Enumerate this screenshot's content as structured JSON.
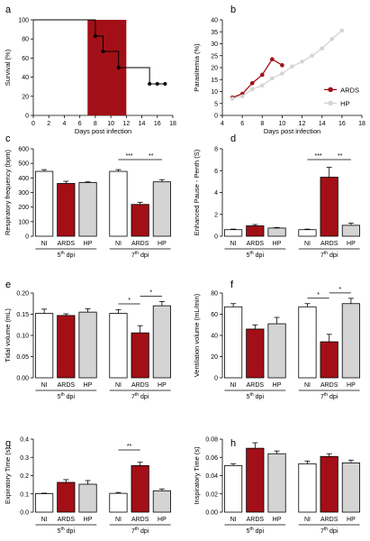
{
  "chart_data": [
    {
      "panel": "a",
      "type": "line",
      "xlabel": "Days post infection",
      "ylabel": "Survival (%)",
      "xlim": [
        0,
        18
      ],
      "ylim": [
        0,
        100
      ],
      "xticks": [
        "0",
        "2",
        "4",
        "6",
        "8",
        "10",
        "12",
        "14",
        "16",
        "18"
      ],
      "yticks": [
        "0",
        "20",
        "40",
        "60",
        "80",
        "100"
      ],
      "shaded_region": {
        "x": [
          7,
          12
        ],
        "color": "#a30f16"
      },
      "x": [
        0,
        7,
        7,
        8,
        8,
        9,
        9,
        11,
        11,
        13,
        13,
        15,
        15,
        16,
        17
      ],
      "y": [
        100,
        100,
        100,
        100,
        83,
        83,
        67,
        67,
        50,
        50,
        50,
        50,
        33,
        33,
        33
      ],
      "points": [
        {
          "x": 8,
          "y": 83
        },
        {
          "x": 9,
          "y": 67
        },
        {
          "x": 11,
          "y": 50
        },
        {
          "x": 15,
          "y": 33
        },
        {
          "x": 16,
          "y": 33
        },
        {
          "x": 17,
          "y": 33
        }
      ]
    },
    {
      "panel": "b",
      "type": "line",
      "xlabel": "Days post infection",
      "ylabel": "Parasitemia (%)",
      "xlim": [
        4,
        18
      ],
      "ylim": [
        0,
        40
      ],
      "xticks": [
        "4",
        "6",
        "8",
        "10",
        "12",
        "14",
        "16",
        "18"
      ],
      "yticks": [
        "0",
        "5",
        "10",
        "15",
        "20",
        "25",
        "30",
        "35",
        "40"
      ],
      "legend": "right",
      "series": [
        {
          "name": "ARDS",
          "color": "#a30f16",
          "x": [
            5,
            6,
            7,
            8,
            9,
            10
          ],
          "y": [
            7.5,
            9,
            13.5,
            17,
            23.5,
            21
          ]
        },
        {
          "name": "HP",
          "color": "#d4d4d4",
          "x": [
            5,
            6,
            7,
            8,
            9,
            10,
            11,
            12,
            13,
            14,
            15,
            16
          ],
          "y": [
            7,
            8,
            11,
            12.5,
            15.5,
            17.5,
            20.5,
            22.5,
            25,
            28,
            32,
            35.5
          ]
        }
      ]
    },
    {
      "panel": "c",
      "type": "bar",
      "ylabel": "Respiratory frequency (bpm)",
      "ylim": [
        0,
        600
      ],
      "yticks": [
        "0",
        "100",
        "200",
        "300",
        "400",
        "500",
        "600"
      ],
      "groups": [
        "5th dpi",
        "7th dpi"
      ],
      "categories": [
        "NI",
        "ARDS",
        "HP",
        "NI",
        "ARDS",
        "HP"
      ],
      "values": [
        445,
        362,
        368,
        445,
        218,
        373
      ],
      "errors": [
        12,
        15,
        5,
        12,
        15,
        15
      ],
      "significance": [
        {
          "from": 3,
          "to": 4,
          "label": "***"
        },
        {
          "from": 4,
          "to": 5,
          "label": "**"
        }
      ]
    },
    {
      "panel": "d",
      "type": "bar",
      "ylabel": "Enhanced Pause - Penth (S)",
      "ylim": [
        0,
        8
      ],
      "yticks": [
        "0",
        "2",
        "4",
        "6",
        "8"
      ],
      "groups": [
        "5th dpi",
        "7th dpi"
      ],
      "categories": [
        "NI",
        "ARDS",
        "HP",
        "NI",
        "ARDS",
        "HP"
      ],
      "values": [
        0.6,
        0.95,
        0.75,
        0.6,
        5.4,
        1.0
      ],
      "errors": [
        0.05,
        0.12,
        0.05,
        0.05,
        0.9,
        0.2
      ],
      "significance": [
        {
          "from": 3,
          "to": 4,
          "label": "***"
        },
        {
          "from": 4,
          "to": 5,
          "label": "**"
        }
      ]
    },
    {
      "panel": "e",
      "type": "bar",
      "ylabel": "Tidal volume (mL)",
      "ylim": [
        0,
        0.2
      ],
      "yticks": [
        "0.00",
        "0.05",
        "0.10",
        "0.15",
        "0.20"
      ],
      "groups": [
        "5th dpi",
        "7th dpi"
      ],
      "categories": [
        "NI",
        "ARDS",
        "HP",
        "NI",
        "ARDS",
        "HP"
      ],
      "values": [
        0.152,
        0.147,
        0.155,
        0.152,
        0.106,
        0.17
      ],
      "errors": [
        0.01,
        0.004,
        0.008,
        0.009,
        0.017,
        0.01
      ],
      "significance": [
        {
          "from": 3,
          "to": 4,
          "label": "*"
        },
        {
          "from": 4,
          "to": 5,
          "label": "*"
        }
      ]
    },
    {
      "panel": "f",
      "type": "bar",
      "ylabel": "Ventilation volume (mL/min)",
      "ylim": [
        0,
        80
      ],
      "yticks": [
        "0",
        "20",
        "40",
        "60",
        "80"
      ],
      "groups": [
        "5th dpi",
        "7th dpi"
      ],
      "categories": [
        "NI",
        "ARDS",
        "HP",
        "NI",
        "ARDS",
        "HP"
      ],
      "values": [
        67,
        46,
        51,
        67,
        34,
        70
      ],
      "errors": [
        3,
        4,
        6,
        3,
        7,
        5
      ],
      "significance": [
        {
          "from": 3,
          "to": 4,
          "label": "*"
        },
        {
          "from": 4,
          "to": 5,
          "label": "*"
        }
      ]
    },
    {
      "panel": "g",
      "type": "bar",
      "ylabel": "Expiratory Time (s)",
      "ylim": [
        0,
        0.4
      ],
      "yticks": [
        "0.0",
        "0.1",
        "0.2",
        "0.3",
        "0.4"
      ],
      "groups": [
        "5th dpi",
        "7th dpi"
      ],
      "categories": [
        "NI",
        "ARDS",
        "HP",
        "NI",
        "ARDS",
        "HP"
      ],
      "values": [
        0.101,
        0.163,
        0.153,
        0.103,
        0.255,
        0.117
      ],
      "errors": [
        0.003,
        0.015,
        0.02,
        0.005,
        0.018,
        0.01
      ],
      "significance": [
        {
          "from": 3,
          "to": 4,
          "label": "**"
        }
      ]
    },
    {
      "panel": "h",
      "type": "bar",
      "ylabel": "Inspiratory Time (s)",
      "ylim": [
        0,
        0.08
      ],
      "yticks": [
        "0.00",
        "0.02",
        "0.04",
        "0.06",
        "0.08"
      ],
      "groups": [
        "5th dpi",
        "7th dpi"
      ],
      "categories": [
        "NI",
        "ARDS",
        "HP",
        "NI",
        "ARDS",
        "HP"
      ],
      "values": [
        0.051,
        0.07,
        0.064,
        0.053,
        0.061,
        0.054
      ],
      "errors": [
        0.002,
        0.006,
        0.003,
        0.003,
        0.003,
        0.003
      ],
      "significance": []
    }
  ],
  "colors": {
    "NI": "#ffffff",
    "ARDS": "#a30f16",
    "HP": "#d4d4d4",
    "axis": "#000000"
  }
}
